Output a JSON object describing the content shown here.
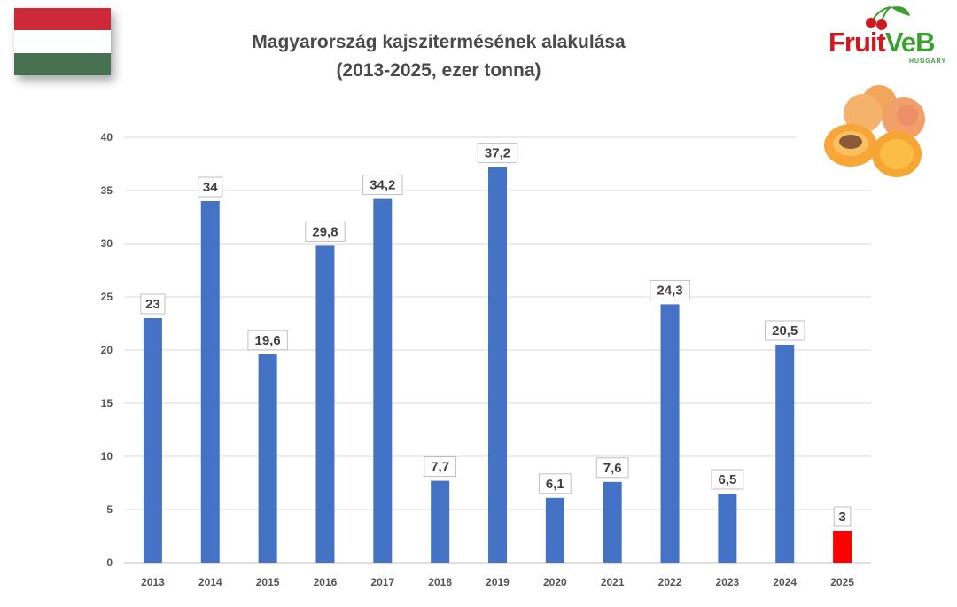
{
  "header": {
    "title_line1": "Magyarország kajszitermésének alakulása",
    "title_line2": "(2013-2025, ezer tonna)"
  },
  "logo": {
    "text_red": "Fruit",
    "text_green": "VeB",
    "sub": "HUNGARY"
  },
  "flag": {
    "colors": [
      "#ce2939",
      "#ffffff",
      "#477050"
    ]
  },
  "chart_data": {
    "type": "bar",
    "categories": [
      "2013",
      "2014",
      "2015",
      "2016",
      "2017",
      "2018",
      "2019",
      "2020",
      "2021",
      "2022",
      "2023",
      "2024",
      "2025"
    ],
    "values": [
      23,
      34,
      19.6,
      29.8,
      34.2,
      7.7,
      37.2,
      6.1,
      7.6,
      24.3,
      6.5,
      20.5,
      3
    ],
    "labels": [
      "23",
      "34",
      "19,6",
      "29,8",
      "34,2",
      "7,7",
      "37,2",
      "6,1",
      "7,6",
      "24,3",
      "6,5",
      "20,5",
      "3"
    ],
    "ylim": [
      0,
      40
    ],
    "yticks": [
      0,
      5,
      10,
      15,
      20,
      25,
      30,
      35,
      40
    ],
    "grid": true,
    "colors": {
      "bar": "#4472c4",
      "highlight": "#ff0000",
      "grid": "#d9d9d9"
    },
    "highlight_category": "2025"
  }
}
